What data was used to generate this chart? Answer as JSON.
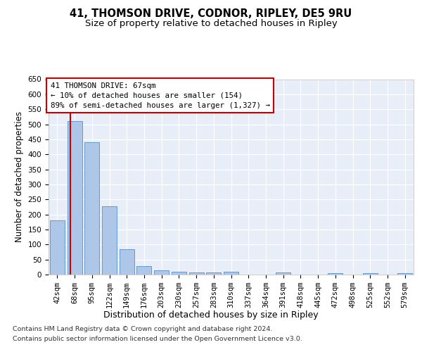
{
  "title_line1": "41, THOMSON DRIVE, CODNOR, RIPLEY, DE5 9RU",
  "title_line2": "Size of property relative to detached houses in Ripley",
  "xlabel": "Distribution of detached houses by size in Ripley",
  "ylabel": "Number of detached properties",
  "footer_line1": "Contains HM Land Registry data © Crown copyright and database right 2024.",
  "footer_line2": "Contains public sector information licensed under the Open Government Licence v3.0.",
  "bar_labels": [
    "42sqm",
    "68sqm",
    "95sqm",
    "122sqm",
    "149sqm",
    "176sqm",
    "203sqm",
    "230sqm",
    "257sqm",
    "283sqm",
    "310sqm",
    "337sqm",
    "364sqm",
    "391sqm",
    "418sqm",
    "445sqm",
    "472sqm",
    "498sqm",
    "525sqm",
    "552sqm",
    "579sqm"
  ],
  "bar_values": [
    180,
    510,
    440,
    228,
    85,
    28,
    14,
    9,
    7,
    7,
    9,
    0,
    0,
    7,
    0,
    0,
    5,
    0,
    5,
    0,
    5
  ],
  "bar_color": "#aec6e8",
  "bar_edge_color": "#6699cc",
  "background_color": "#e8eef8",
  "grid_color": "#ffffff",
  "annotation_text": "41 THOMSON DRIVE: 67sqm\n← 10% of detached houses are smaller (154)\n89% of semi-detached houses are larger (1,327) →",
  "annotation_box_color": "#cc0000",
  "ylim": [
    0,
    650
  ],
  "yticks": [
    0,
    50,
    100,
    150,
    200,
    250,
    300,
    350,
    400,
    450,
    500,
    550,
    600,
    650
  ],
  "title_fontsize": 10.5,
  "subtitle_fontsize": 9.5,
  "axis_label_fontsize": 8.5,
  "tick_fontsize": 7.5,
  "annotation_fontsize": 7.8,
  "ylabel_fontsize": 8.5
}
